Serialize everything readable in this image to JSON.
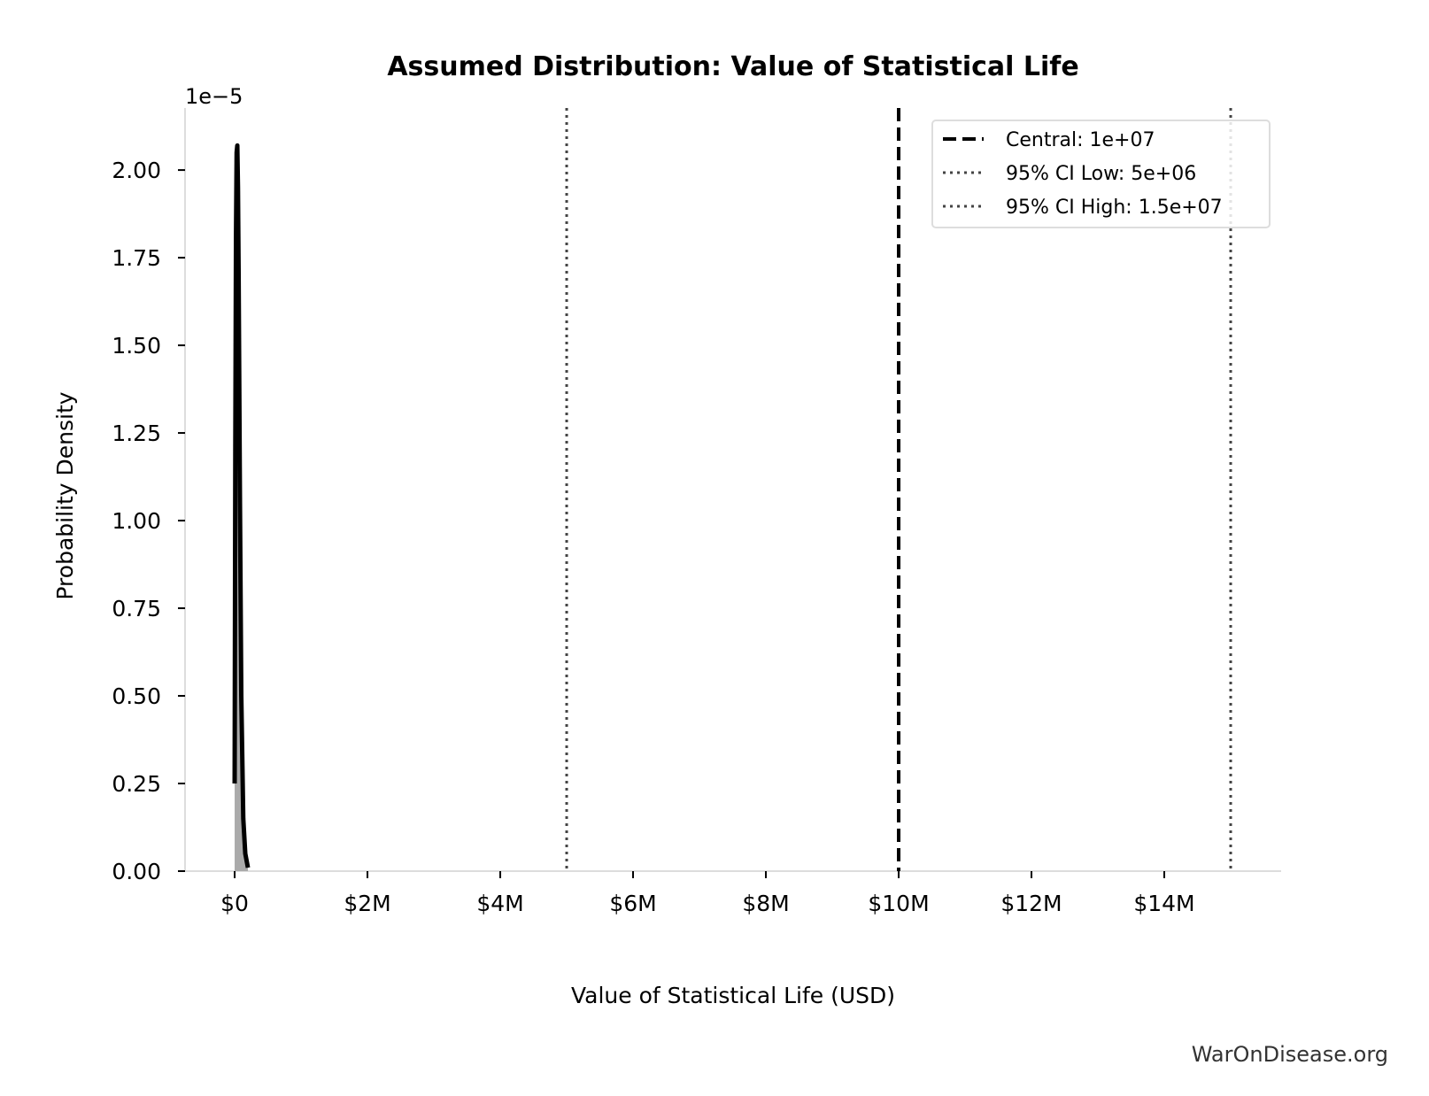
{
  "chart_data": {
    "type": "line",
    "title": "Assumed Distribution: Value of Statistical Life",
    "xlabel": "Value of Statistical Life (USD)",
    "ylabel": "Probability Density",
    "y_scale_label": "1e−5",
    "xlim": [
      -747000,
      15760000
    ],
    "ylim": [
      0,
      2.177
    ],
    "x_ticks": [
      0,
      2000000,
      4000000,
      6000000,
      8000000,
      10000000,
      12000000,
      14000000
    ],
    "x_tick_labels": [
      "$0",
      "$2M",
      "$4M",
      "$6M",
      "$8M",
      "$10M",
      "$12M",
      "$14M"
    ],
    "y_ticks": [
      0,
      0.25,
      0.5,
      0.75,
      1.0,
      1.25,
      1.5,
      1.75,
      2.0
    ],
    "y_tick_labels": [
      "0.00",
      "0.25",
      "0.50",
      "0.75",
      "1.00",
      "1.25",
      "1.50",
      "1.75",
      "2.00"
    ],
    "grid": false,
    "series": [
      {
        "x": [
          0,
          10000,
          20000,
          30000,
          40000,
          50000,
          60000,
          80000,
          100000,
          130000,
          160000,
          200000
        ],
        "y": [
          0.25,
          1.2,
          1.8,
          2.05,
          2.07,
          1.95,
          1.7,
          1.05,
          0.5,
          0.15,
          0.05,
          0.01
        ],
        "color": "#000000",
        "fill": "#aaaaaa"
      }
    ],
    "vlines": [
      {
        "name": "Central: 1e+07",
        "x": 10000000,
        "style": "dashed",
        "color": "#000000"
      },
      {
        "name": "95% CI Low: 5e+06",
        "x": 5000000,
        "style": "dotted",
        "color": "#444444"
      },
      {
        "name": "95% CI High: 1.5e+07",
        "x": 15000000,
        "style": "dotted",
        "color": "#444444"
      }
    ],
    "legend_position": "top-right"
  },
  "watermark": "WarOnDisease.org"
}
